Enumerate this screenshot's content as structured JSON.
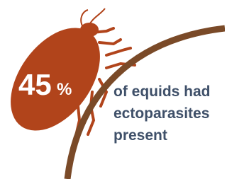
{
  "stat": {
    "number": "45",
    "unit": "%"
  },
  "caption": {
    "lines": [
      "of equids had",
      "ectoparasites",
      "present"
    ]
  }
}
